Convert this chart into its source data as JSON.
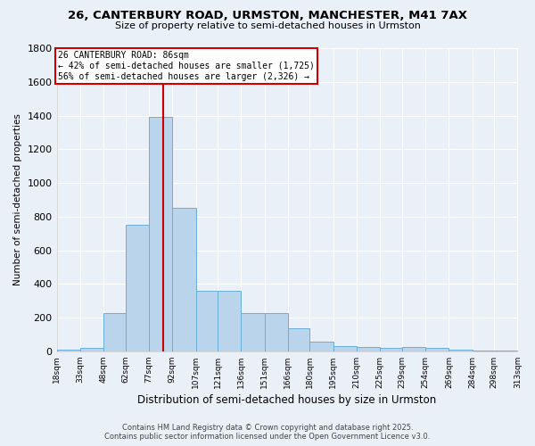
{
  "title": "26, CANTERBURY ROAD, URMSTON, MANCHESTER, M41 7AX",
  "subtitle": "Size of property relative to semi-detached houses in Urmston",
  "xlabel": "Distribution of semi-detached houses by size in Urmston",
  "ylabel": "Number of semi-detached properties",
  "bar_color": "#bad4ec",
  "bar_edge_color": "#6aaed6",
  "background_color": "#eaf0f8",
  "grid_color": "#ffffff",
  "property_line_x": 86,
  "annotation_title": "26 CANTERBURY ROAD: 86sqm",
  "annotation_line1": "← 42% of semi-detached houses are smaller (1,725)",
  "annotation_line2": "56% of semi-detached houses are larger (2,326) →",
  "annotation_box_color": "#cc0000",
  "footer_line1": "Contains HM Land Registry data © Crown copyright and database right 2025.",
  "footer_line2": "Contains public sector information licensed under the Open Government Licence v3.0.",
  "bin_edges": [
    18,
    33,
    48,
    62,
    77,
    92,
    107,
    121,
    136,
    151,
    166,
    180,
    195,
    210,
    225,
    239,
    254,
    269,
    284,
    298,
    313
  ],
  "bar_heights": [
    10,
    20,
    225,
    750,
    1390,
    850,
    360,
    360,
    225,
    225,
    135,
    55,
    30,
    25,
    20,
    25,
    20,
    8,
    5,
    2
  ],
  "ylim": [
    0,
    1800
  ],
  "yticks": [
    0,
    200,
    400,
    600,
    800,
    1000,
    1200,
    1400,
    1600,
    1800
  ]
}
